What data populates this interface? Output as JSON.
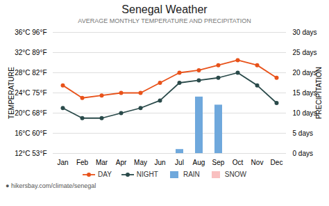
{
  "chart_data": {
    "type": "combo",
    "title": "Senegal Weather",
    "subtitle": "AVERAGE MONTHLY TEMPERATURE AND PRECIPITATION",
    "y_label": "TEMPERATURE",
    "y2_label": "PRECIPITATION",
    "categories": [
      "Jan",
      "Feb",
      "Mar",
      "Apr",
      "May",
      "Jun",
      "Jul",
      "Aug",
      "Sep",
      "Oct",
      "Nov",
      "Dec"
    ],
    "series": [
      {
        "name": "DAY",
        "type": "line",
        "color": "#e8521a",
        "marker": "circle",
        "values": [
          25.5,
          23.0,
          23.5,
          24.0,
          24.0,
          26.0,
          28.0,
          28.5,
          29.5,
          30.5,
          29.5,
          27.0
        ]
      },
      {
        "name": "NIGHT",
        "type": "line",
        "color": "#2a4a4a",
        "marker": "circle",
        "values": [
          21.0,
          19.0,
          19.0,
          20.0,
          21.0,
          22.5,
          26.0,
          26.5,
          27.0,
          28.0,
          25.5,
          22.0
        ]
      },
      {
        "name": "RAIN",
        "type": "bar",
        "axis": "y2",
        "color": "#6fa8dc",
        "values": [
          0,
          0,
          0,
          0,
          0,
          0,
          1,
          14,
          12,
          0,
          0,
          0
        ]
      },
      {
        "name": "SNOW",
        "type": "bar",
        "axis": "y2",
        "color": "#f9c0c0",
        "values": [
          null,
          null,
          null,
          null,
          null,
          null,
          null,
          null,
          null,
          null,
          null,
          null
        ]
      }
    ],
    "ylim": [
      12,
      36
    ],
    "yticks": [
      {
        "value": 12,
        "label": "12°C 53°F"
      },
      {
        "value": 16,
        "label": "16°C 60°F"
      },
      {
        "value": 20,
        "label": "20°C 68°F"
      },
      {
        "value": 24,
        "label": "24°C 75°F"
      },
      {
        "value": 28,
        "label": "28°C 82°F"
      },
      {
        "value": 32,
        "label": "32°C 89°F"
      },
      {
        "value": 36,
        "label": "36°C 96°F"
      }
    ],
    "y2lim": [
      0,
      30
    ],
    "y2ticks": [
      {
        "value": 0,
        "label": "0 days"
      },
      {
        "value": 5,
        "label": "5 days"
      },
      {
        "value": 10,
        "label": "10 days"
      },
      {
        "value": 15,
        "label": "15 days"
      },
      {
        "value": 20,
        "label": "20 days"
      },
      {
        "value": 25,
        "label": "25 days"
      },
      {
        "value": 30,
        "label": "30 days"
      }
    ],
    "grid": true,
    "legend": "bottom",
    "annotations": [
      "● hikersbay.com/climate/senegal"
    ]
  }
}
